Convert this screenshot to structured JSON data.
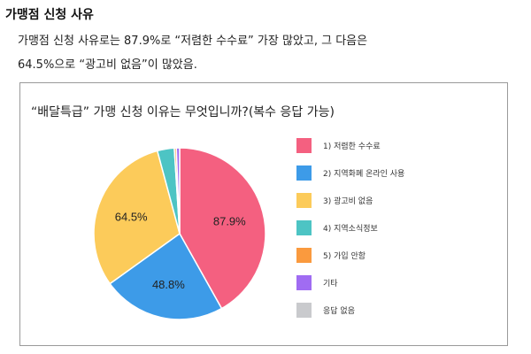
{
  "heading": "가맹점 신청 사유",
  "body_lines": [
    "가맹점 신청 사유로는 87.9%로 “저렴한 수수료” 가장 많았고, 그 다음은",
    "64.5%으로 “광고비 없음”이 많았음."
  ],
  "chart_data": {
    "type": "pie",
    "title": "“배달특급” 가맹 신청 이유는 무엇입니까?(복수 응답 가능)",
    "legend_position": "right",
    "categories": [
      "1) 저렴한 수수료",
      "2) 지역화폐 온라인 사용",
      "3) 광고비 없음",
      "4) 지역소식정보",
      "5) 가입 안함",
      "기타",
      "응답 없음"
    ],
    "values": [
      87.9,
      48.8,
      64.5,
      6.7,
      0.8,
      1.3,
      0
    ],
    "data_labels": [
      "87.9%",
      "48.8%",
      "64.5%",
      "",
      "",
      "",
      ""
    ],
    "colors": [
      "#f46080",
      "#3d9be8",
      "#fccb5a",
      "#4dc4c4",
      "#fa9a3e",
      "#a06cf2",
      "#c9cacd"
    ]
  }
}
